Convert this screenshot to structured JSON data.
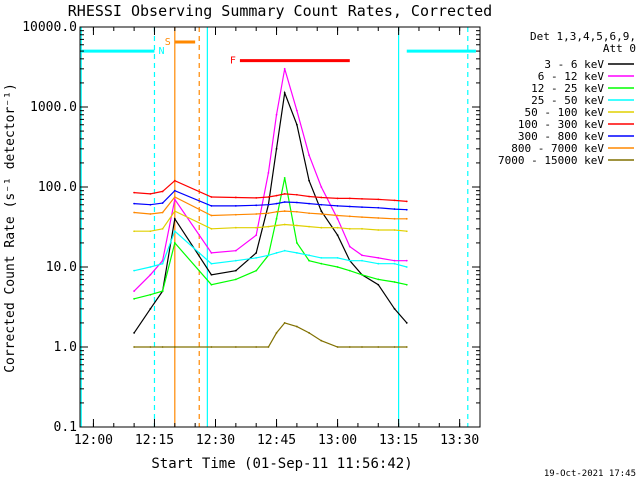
{
  "chart_data": {
    "type": "line",
    "title": "RHESSI Observing Summary Count Rates, Corrected",
    "xlabel": "Start Time (01-Sep-11 11:56:42)",
    "ylabel": "Corrected Count Rate (s⁻¹ detector⁻¹)",
    "y_scale": "log",
    "ylim": [
      0.1,
      10000
    ],
    "xlim": [
      "11:56:42",
      "13:35"
    ],
    "x_ticks": [
      "12:00",
      "12:15",
      "12:30",
      "12:45",
      "13:00",
      "13:15",
      "13:30"
    ],
    "y_ticks": [
      "0.1",
      "1.0",
      "10.0",
      "100.0",
      "1000.0",
      "10000.0"
    ],
    "legend_header": [
      "Det 1,3,4,5,6,9,",
      "Att 0"
    ],
    "footer_date": "19-Oct-2021 17:45",
    "series": [
      {
        "name": "3 - 6 keV",
        "color": "#000000",
        "x": [
          "12:10",
          "12:14",
          "12:17",
          "12:20",
          "12:29",
          "12:35",
          "12:40",
          "12:43",
          "12:45",
          "12:47",
          "12:50",
          "12:53",
          "12:56",
          "13:00",
          "13:03",
          "13:06",
          "13:10",
          "13:14",
          "13:17"
        ],
        "values": [
          1.5,
          3,
          5,
          40,
          8,
          9,
          15,
          60,
          300,
          1500,
          600,
          120,
          50,
          25,
          12,
          8,
          6,
          3,
          2
        ]
      },
      {
        "name": "6 - 12 keV",
        "color": "#ff00ff",
        "x": [
          "12:10",
          "12:14",
          "12:17",
          "12:20",
          "12:29",
          "12:35",
          "12:40",
          "12:43",
          "12:45",
          "12:47",
          "12:50",
          "12:53",
          "12:56",
          "13:00",
          "13:03",
          "13:06",
          "13:10",
          "13:14",
          "13:17"
        ],
        "values": [
          5,
          8,
          12,
          70,
          15,
          16,
          25,
          150,
          800,
          3000,
          900,
          250,
          100,
          40,
          18,
          14,
          13,
          12,
          12
        ]
      },
      {
        "name": "12 - 25 keV",
        "color": "#00ff00",
        "x": [
          "12:10",
          "12:14",
          "12:17",
          "12:20",
          "12:29",
          "12:35",
          "12:40",
          "12:43",
          "12:45",
          "12:47",
          "12:50",
          "12:53",
          "12:56",
          "13:00",
          "13:03",
          "13:06",
          "13:10",
          "13:14",
          "13:17"
        ],
        "values": [
          4,
          4.5,
          5,
          20,
          6,
          7,
          9,
          14,
          40,
          130,
          20,
          12,
          11,
          10,
          9,
          8,
          7,
          6.5,
          6
        ]
      },
      {
        "name": "25 - 50 keV",
        "color": "#00ffff",
        "x": [
          "12:10",
          "12:14",
          "12:17",
          "12:20",
          "12:29",
          "12:35",
          "12:40",
          "12:43",
          "12:45",
          "12:47",
          "12:50",
          "12:53",
          "12:56",
          "13:00",
          "13:03",
          "13:06",
          "13:10",
          "13:14",
          "13:17"
        ],
        "values": [
          9,
          10,
          11,
          28,
          11,
          12,
          13,
          14,
          15,
          16,
          15,
          14,
          13,
          13,
          12,
          12,
          11,
          11,
          10
        ]
      },
      {
        "name": "50 - 100 keV",
        "color": "#e0d000",
        "x": [
          "12:10",
          "12:14",
          "12:17",
          "12:20",
          "12:29",
          "12:35",
          "12:40",
          "12:43",
          "12:45",
          "12:47",
          "12:50",
          "12:53",
          "12:56",
          "13:00",
          "13:03",
          "13:06",
          "13:10",
          "13:14",
          "13:17"
        ],
        "values": [
          28,
          28,
          30,
          50,
          30,
          31,
          31,
          32,
          33,
          34,
          33,
          32,
          31,
          31,
          30,
          30,
          29,
          29,
          28
        ]
      },
      {
        "name": "100 - 300 keV",
        "color": "#ff0000",
        "x": [
          "12:10",
          "12:14",
          "12:17",
          "12:20",
          "12:29",
          "12:35",
          "12:40",
          "12:43",
          "12:45",
          "12:47",
          "12:50",
          "12:53",
          "12:56",
          "13:00",
          "13:03",
          "13:06",
          "13:10",
          "13:14",
          "13:17"
        ],
        "values": [
          85,
          82,
          88,
          120,
          75,
          74,
          73,
          75,
          78,
          82,
          80,
          76,
          74,
          72,
          72,
          71,
          70,
          68,
          66
        ]
      },
      {
        "name": "300 - 800 keV",
        "color": "#0000ff",
        "x": [
          "12:10",
          "12:14",
          "12:17",
          "12:20",
          "12:29",
          "12:35",
          "12:40",
          "12:43",
          "12:45",
          "12:47",
          "12:50",
          "12:53",
          "12:56",
          "13:00",
          "13:03",
          "13:06",
          "13:10",
          "13:14",
          "13:17"
        ],
        "values": [
          62,
          60,
          63,
          90,
          58,
          58,
          59,
          60,
          62,
          65,
          64,
          62,
          60,
          58,
          57,
          56,
          55,
          53,
          52
        ]
      },
      {
        "name": "800 - 7000 keV",
        "color": "#ff8800",
        "x": [
          "12:10",
          "12:14",
          "12:17",
          "12:20",
          "12:29",
          "12:35",
          "12:40",
          "12:43",
          "12:45",
          "12:47",
          "12:50",
          "12:53",
          "12:56",
          "13:00",
          "13:03",
          "13:06",
          "13:10",
          "13:14",
          "13:17"
        ],
        "values": [
          48,
          46,
          48,
          75,
          44,
          45,
          46,
          47,
          49,
          50,
          49,
          47,
          46,
          44,
          43,
          42,
          41,
          40,
          40
        ]
      },
      {
        "name": "7000 - 15000 keV",
        "color": "#807000",
        "x": [
          "12:10",
          "12:14",
          "12:17",
          "12:20",
          "12:29",
          "12:35",
          "12:40",
          "12:43",
          "12:45",
          "12:47",
          "12:50",
          "12:53",
          "12:56",
          "13:00",
          "13:03",
          "13:06",
          "13:10",
          "13:14",
          "13:17"
        ],
        "values": [
          1,
          1,
          1,
          1,
          1,
          1,
          1,
          1,
          1.5,
          2,
          1.8,
          1.5,
          1.2,
          1,
          1,
          1,
          1,
          1,
          1
        ]
      }
    ],
    "flag_bars": [
      {
        "label": "N",
        "color": "#00ffff",
        "segments": [
          [
            "11:56:42",
            "12:15"
          ],
          [
            "13:17",
            "13:34"
          ]
        ],
        "value": 5000
      },
      {
        "label": "S",
        "color": "#ff8800",
        "segments": [
          [
            "12:20",
            "12:25"
          ]
        ],
        "value": 6500
      },
      {
        "label": "F",
        "color": "#ff0000",
        "segments": [
          [
            "12:36",
            "13:03"
          ]
        ],
        "value": 3800
      }
    ],
    "vlines": [
      {
        "x": "11:57",
        "color": "#00ffff",
        "style": "solid"
      },
      {
        "x": "12:15",
        "color": "#00ffff",
        "style": "dashed"
      },
      {
        "x": "12:20",
        "color": "#ff8800",
        "style": "solid"
      },
      {
        "x": "12:26",
        "color": "#ff8800",
        "style": "dashed"
      },
      {
        "x": "12:28",
        "color": "#00ffff",
        "style": "solid"
      },
      {
        "x": "13:15",
        "color": "#00ffff",
        "style": "solid"
      },
      {
        "x": "13:32",
        "color": "#00ffff",
        "style": "dashed"
      }
    ]
  }
}
